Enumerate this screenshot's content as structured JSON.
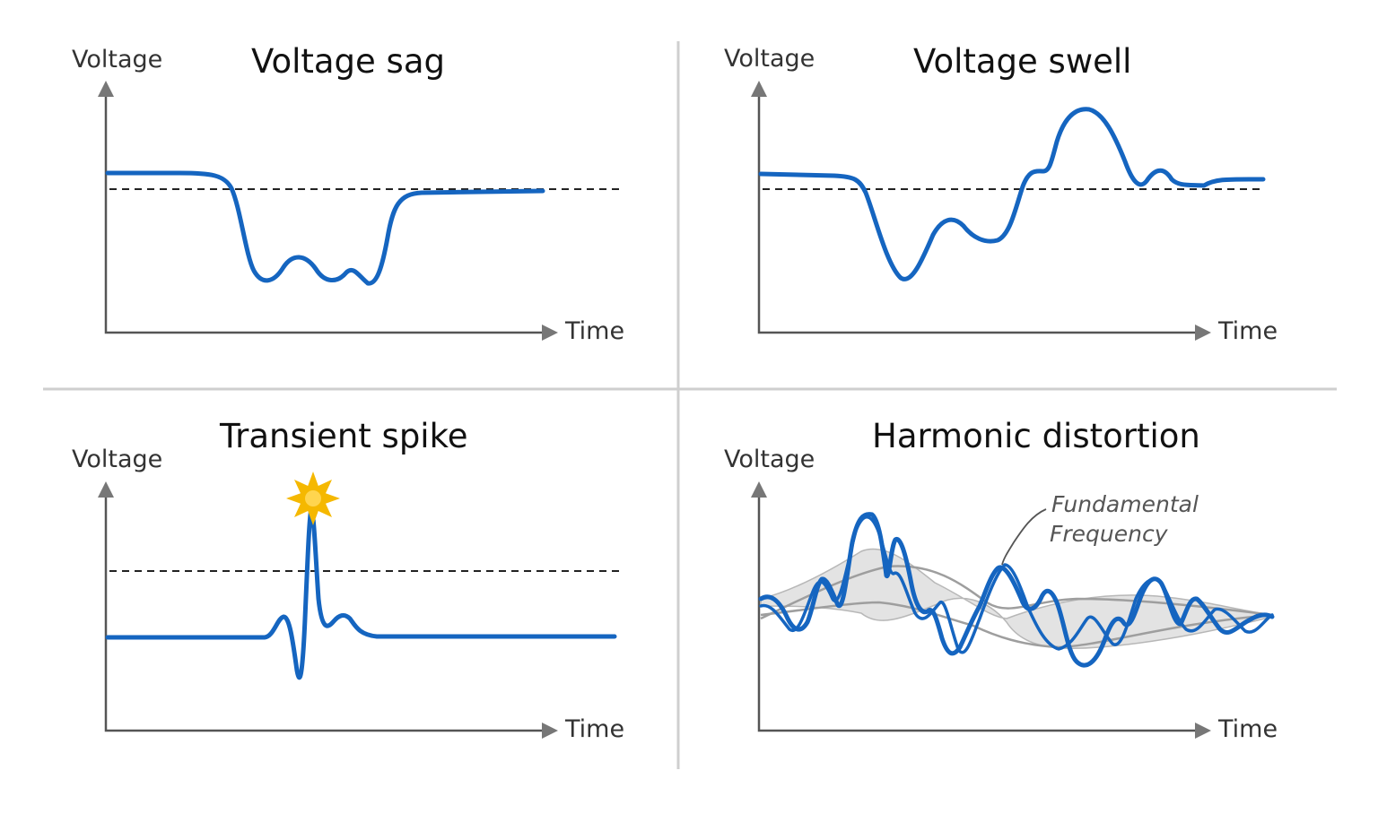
{
  "panels": {
    "sag": {
      "title": "Voltage sag",
      "y_axis": "Voltage",
      "x_axis": "Time"
    },
    "swell": {
      "title": "Voltage swell",
      "y_axis": "Voltage",
      "x_axis": "Time"
    },
    "spike": {
      "title": "Transient spike",
      "y_axis": "Voltage",
      "x_axis": "Time"
    },
    "harmonic": {
      "title": "Harmonic distortion",
      "y_axis": "Voltage",
      "x_axis": "Time",
      "annotation_line1": "Fundamental",
      "annotation_line2": "Frequency"
    }
  },
  "colors": {
    "waveform": "#1565c0",
    "threshold": "#222222",
    "spark": "#f5b800",
    "band": "#e3e3e3"
  }
}
